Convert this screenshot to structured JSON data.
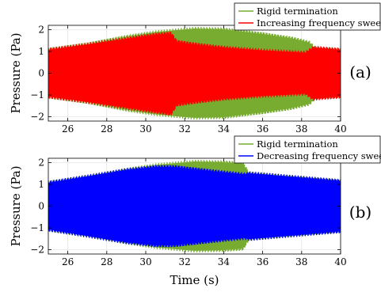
{
  "chart_data": [
    {
      "type": "area",
      "panel_label": "(a)",
      "ylabel": "Pressure (Pa)",
      "xlabel": "",
      "xlim": [
        25,
        40
      ],
      "ylim": [
        -2.2,
        2.2
      ],
      "xticks": [
        26,
        28,
        30,
        32,
        34,
        36,
        38,
        40
      ],
      "yticks": [
        -2,
        -1,
        0,
        1,
        2
      ],
      "legend_position": "top-right",
      "series": [
        {
          "name": "Rigid termination",
          "color": "#77ac30",
          "envelope": {
            "x": [
              25,
              27,
              29,
              30.5,
              31.5,
              32.5,
              34,
              36,
              37.5,
              38.4,
              38.7,
              40
            ],
            "upper": [
              1.12,
              1.38,
              1.72,
              1.92,
              2.0,
              2.08,
              2.06,
              1.85,
              1.65,
              1.45,
              1.18,
              1.12
            ],
            "lower": [
              -1.12,
              -1.38,
              -1.72,
              -1.92,
              -2.0,
              -2.08,
              -2.06,
              -1.85,
              -1.65,
              -1.45,
              -1.18,
              -1.12
            ]
          }
        },
        {
          "name": "Increasing frequency sweep",
          "color": "#ff0000",
          "envelope": {
            "x": [
              25,
              27,
              29,
              30.5,
              31.3,
              31.6,
              32.5,
              34,
              36,
              38.2,
              38.6,
              40
            ],
            "upper": [
              1.12,
              1.35,
              1.62,
              1.82,
              1.88,
              1.5,
              1.38,
              1.22,
              1.08,
              0.98,
              1.22,
              1.12
            ],
            "lower": [
              -1.12,
              -1.35,
              -1.62,
              -1.82,
              -1.92,
              -1.5,
              -1.38,
              -1.22,
              -1.08,
              -0.98,
              -1.22,
              -1.12
            ]
          }
        }
      ]
    },
    {
      "type": "area",
      "panel_label": "(b)",
      "ylabel": "Pressure (Pa)",
      "xlabel": "Time (s)",
      "xlim": [
        25,
        40
      ],
      "ylim": [
        -2.2,
        2.2
      ],
      "xticks": [
        26,
        28,
        30,
        32,
        34,
        36,
        38,
        40
      ],
      "yticks": [
        -2,
        -1,
        0,
        1,
        2
      ],
      "legend_position": "top-right",
      "series": [
        {
          "name": "Rigid termination",
          "color": "#77ac30",
          "envelope": {
            "x": [
              25,
              27,
              29,
              30.5,
              31.5,
              32.5,
              34,
              35,
              35.3,
              37,
              40
            ],
            "upper": [
              1.12,
              1.38,
              1.72,
              1.92,
              2.0,
              2.08,
              2.06,
              2.0,
              1.55,
              1.42,
              1.2
            ],
            "lower": [
              -1.12,
              -1.38,
              -1.72,
              -1.92,
              -2.0,
              -2.08,
              -2.06,
              -2.0,
              -1.55,
              -1.42,
              -1.2
            ]
          }
        },
        {
          "name": "Decreasing frequency sweep",
          "color": "#0000ff",
          "envelope": {
            "x": [
              25,
              27,
              29,
              30.5,
              31.5,
              32.5,
              34,
              35.1,
              35.3,
              37,
              40
            ],
            "upper": [
              1.12,
              1.4,
              1.7,
              1.85,
              1.85,
              1.75,
              1.6,
              1.5,
              1.55,
              1.42,
              1.2
            ],
            "lower": [
              -1.12,
              -1.4,
              -1.7,
              -1.85,
              -1.85,
              -1.75,
              -1.6,
              -1.5,
              -1.55,
              -1.42,
              -1.2
            ]
          }
        }
      ]
    }
  ]
}
